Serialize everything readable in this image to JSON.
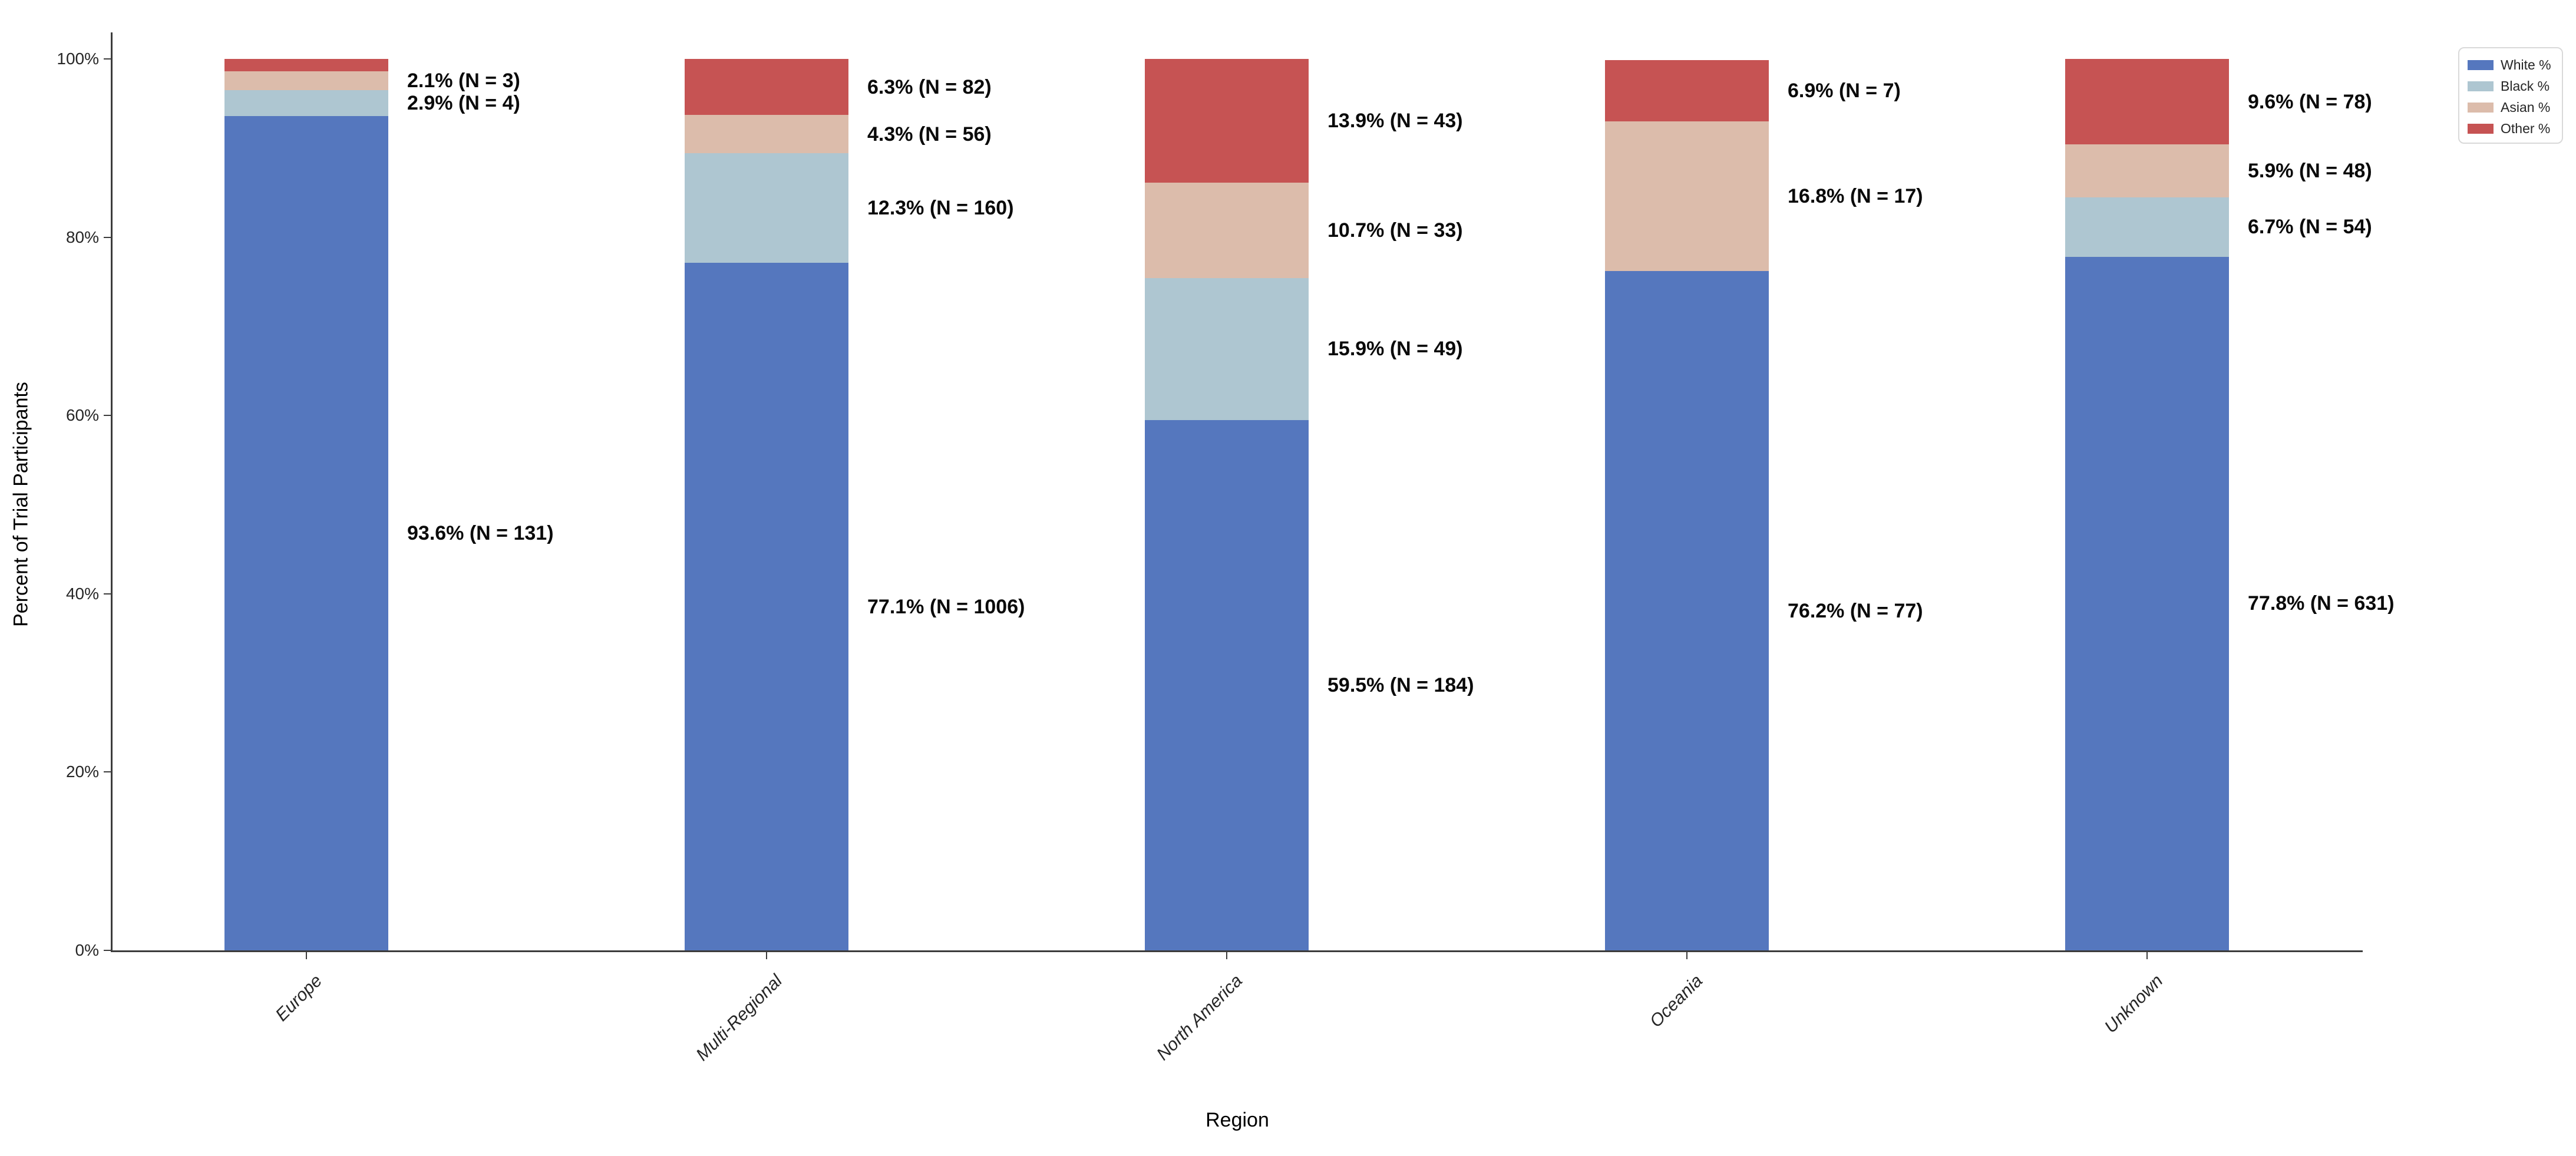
{
  "chart_data": {
    "type": "bar",
    "stacked": true,
    "orientation": "vertical",
    "title": "",
    "xlabel": "Region",
    "ylabel": "Percent of Trial Participants",
    "ylim": [
      0,
      100
    ],
    "grid": false,
    "categories": [
      "Europe",
      "Multi-Regional",
      "North America",
      "Oceania",
      "Unknown"
    ],
    "yticks": [
      {
        "value": 0,
        "label": "0%"
      },
      {
        "value": 20,
        "label": "20%"
      },
      {
        "value": 40,
        "label": "40%"
      },
      {
        "value": 60,
        "label": "60%"
      },
      {
        "value": 80,
        "label": "80%"
      },
      {
        "value": 100,
        "label": "100%"
      }
    ],
    "series": [
      {
        "name": "White %",
        "color": "#5577be",
        "values": [
          93.6,
          77.1,
          59.5,
          76.2,
          77.8
        ],
        "n": [
          131,
          1006,
          184,
          77,
          631
        ],
        "labels": [
          "93.6% (N = 131)",
          "77.1% (N = 1006)",
          "59.5% (N = 184)",
          "76.2% (N = 77)",
          "77.8% (N = 631)"
        ]
      },
      {
        "name": "Black %",
        "color": "#aec6d1",
        "values": [
          2.9,
          12.3,
          15.9,
          0,
          6.7
        ],
        "n": [
          4,
          160,
          49,
          null,
          54
        ],
        "labels": [
          "2.9% (N = 4)",
          "12.3% (N = 160)",
          "15.9% (N = 49)",
          null,
          "6.7% (N = 54)"
        ]
      },
      {
        "name": "Asian %",
        "color": "#dcbcab",
        "values": [
          2.1,
          4.3,
          10.7,
          16.8,
          5.9
        ],
        "n": [
          3,
          56,
          33,
          17,
          48
        ],
        "labels": [
          "2.1% (N = 3)",
          "4.3% (N = 56)",
          "10.7% (N = 33)",
          "16.8% (N = 17)",
          "5.9% (N = 48)"
        ]
      },
      {
        "name": "Other %",
        "color": "#c65353",
        "values": [
          1.4,
          6.3,
          13.9,
          6.9,
          9.6
        ],
        "n": [
          null,
          82,
          43,
          7,
          78
        ],
        "labels": [
          null,
          "6.3% (N = 82)",
          "13.9% (N = 43)",
          "6.9% (N = 7)",
          "9.6% (N = 78)"
        ]
      }
    ],
    "legend": {
      "position": "upper-right",
      "entries": [
        "White %",
        "Black %",
        "Asian %",
        "Other %"
      ]
    }
  }
}
